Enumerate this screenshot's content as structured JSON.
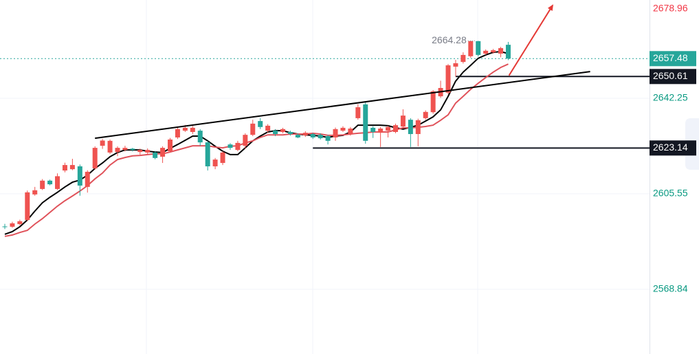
{
  "chart_data": {
    "type": "candlestick",
    "up_color": "#ef5350",
    "down_color": "#26a69a",
    "xlim": [
      -0.64,
      85.8
    ],
    "ylim": [
      2544.0,
      2680.0
    ],
    "yticks": [
      2642.25,
      2605.55,
      2568.84
    ],
    "grid": true,
    "open": [
      2593.0,
      2592.9,
      2593.9,
      2595.5,
      2605.3,
      2607.4,
      2610.6,
      2607.4,
      2614.5,
      2615.0,
      2616.1,
      2608.2,
      2615.3,
      2624.0,
      2621.4,
      2621.6,
      2622.4,
      2622.9,
      2621.6,
      2621.4,
      2621.4,
      2619.8,
      2621.9,
      2627.2,
      2629.8,
      2629.3,
      2629.8,
      2625.3,
      2616.1,
      2617.4,
      2624.5,
      2622.4,
      2624.0,
      2628.2,
      2633.5,
      2629.8,
      2629.8,
      2629.3,
      2629.3,
      2628.2,
      2628.0,
      2628.5,
      2628.2,
      2627.7,
      2627.2,
      2629.8,
      2628.5,
      2634.6,
      2639.9,
      2630.9,
      2629.0,
      2629.8,
      2629.3,
      2631.4,
      2634.0,
      2628.5,
      2634.6,
      2636.9,
      2643.0,
      2644.4,
      2654.4,
      2656.2,
      2658.4,
      2664.2,
      2659.4,
      2659.9,
      2659.4,
      2662.8
    ],
    "high": [
      2594.0,
      2594.8,
      2595.6,
      2606.8,
      2608.2,
      2611.2,
      2611.0,
      2613.4,
      2617.5,
      2619.0,
      2616.8,
      2614.6,
      2623.8,
      2626.6,
      2626.4,
      2623.8,
      2624.0,
      2623.2,
      2622.9,
      2623.0,
      2622.0,
      2623.8,
      2627.0,
      2631.0,
      2632.0,
      2631.6,
      2630.4,
      2625.8,
      2619.3,
      2621.9,
      2625.0,
      2625.9,
      2628.8,
      2634.0,
      2634.6,
      2632.3,
      2630.4,
      2630.9,
      2629.8,
      2628.8,
      2629.6,
      2629.0,
      2628.8,
      2628.2,
      2631.0,
      2631.5,
      2631.2,
      2640.0,
      2641.0,
      2631.5,
      2631.2,
      2631.7,
      2632.5,
      2638.0,
      2634.6,
      2634.4,
      2637.6,
      2645.4,
      2649.0,
      2655.4,
      2657.0,
      2659.9,
      2664.3,
      2664.3,
      2661.0,
      2661.2,
      2662.0,
      2663.9
    ],
    "low": [
      2592.0,
      2592.5,
      2593.5,
      2595.0,
      2604.8,
      2607.0,
      2608.8,
      2607.0,
      2613.8,
      2614.6,
      2604.8,
      2606.0,
      2614.8,
      2622.8,
      2620.8,
      2620.0,
      2621.8,
      2621.8,
      2620.6,
      2620.8,
      2618.8,
      2617.4,
      2621.4,
      2626.6,
      2629.3,
      2628.5,
      2624.0,
      2614.5,
      2615.0,
      2616.6,
      2622.4,
      2621.9,
      2622.9,
      2627.7,
      2630.4,
      2629.0,
      2627.7,
      2628.8,
      2627.9,
      2626.9,
      2627.4,
      2626.6,
      2626.4,
      2624.5,
      2625.9,
      2629.3,
      2627.9,
      2634.0,
      2624.8,
      2627.0,
      2623.5,
      2627.2,
      2628.8,
      2630.9,
      2623.5,
      2623.8,
      2634.0,
      2636.3,
      2642.4,
      2643.8,
      2650.6,
      2655.6,
      2657.8,
      2658.3,
      2658.9,
      2659.4,
      2658.0,
      2656.9
    ],
    "close": [
      2592.8,
      2594.2,
      2595.0,
      2606.1,
      2606.9,
      2610.6,
      2609.2,
      2612.3,
      2616.6,
      2616.6,
      2608.7,
      2614.0,
      2623.2,
      2626.0,
      2625.9,
      2623.2,
      2623.2,
      2622.4,
      2622.4,
      2622.4,
      2619.3,
      2623.2,
      2626.4,
      2630.4,
      2630.9,
      2630.9,
      2625.3,
      2616.1,
      2618.7,
      2621.4,
      2623.2,
      2625.1,
      2628.2,
      2632.5,
      2631.2,
      2631.7,
      2628.5,
      2630.4,
      2628.5,
      2627.2,
      2629.0,
      2627.2,
      2626.9,
      2625.9,
      2630.4,
      2630.9,
      2630.6,
      2638.8,
      2625.9,
      2629.3,
      2630.6,
      2631.2,
      2631.9,
      2635.6,
      2628.5,
      2633.8,
      2637.0,
      2644.9,
      2646.2,
      2654.9,
      2655.7,
      2658.9,
      2664.2,
      2658.9,
      2660.5,
      2660.7,
      2661.5,
      2657.5
    ],
    "moving_averages": [
      {
        "color": "#000000",
        "values": [
          2590.0,
          2591.0,
          2592.9,
          2595.5,
          2598.9,
          2602.1,
          2604.2,
          2606.1,
          2608.2,
          2610.0,
          2610.8,
          2612.7,
          2615.3,
          2617.4,
          2619.8,
          2621.4,
          2622.4,
          2622.4,
          2622.4,
          2621.9,
          2621.6,
          2621.4,
          2623.0,
          2624.5,
          2626.1,
          2627.7,
          2627.7,
          2625.9,
          2623.8,
          2621.9,
          2620.6,
          2620.6,
          2623.2,
          2625.9,
          2627.7,
          2629.3,
          2629.8,
          2629.8,
          2629.0,
          2628.5,
          2628.2,
          2628.0,
          2627.7,
          2627.2,
          2627.7,
          2628.0,
          2629.3,
          2631.9,
          2631.9,
          2631.9,
          2631.9,
          2631.7,
          2630.9,
          2630.4,
          2631.1,
          2631.9,
          2633.5,
          2635.1,
          2637.8,
          2643.0,
          2648.8,
          2652.3,
          2654.9,
          2657.6,
          2658.9,
          2659.9,
          2660.2,
          2659.4
        ]
      },
      {
        "color": "#e0525a",
        "values": [
          2589.2,
          2589.7,
          2590.7,
          2591.5,
          2593.9,
          2596.0,
          2598.4,
          2600.8,
          2602.9,
          2604.7,
          2606.6,
          2608.7,
          2611.3,
          2613.5,
          2616.6,
          2618.7,
          2619.5,
          2620.1,
          2620.3,
          2620.6,
          2620.9,
          2620.9,
          2621.6,
          2622.4,
          2623.2,
          2624.0,
          2624.0,
          2624.0,
          2623.5,
          2623.2,
          2623.8,
          2624.0,
          2625.1,
          2625.9,
          2627.2,
          2628.2,
          2628.2,
          2628.2,
          2628.5,
          2628.5,
          2628.5,
          2628.8,
          2628.5,
          2628.0,
          2628.0,
          2628.2,
          2628.5,
          2628.8,
          2629.0,
          2629.3,
          2629.3,
          2629.3,
          2630.1,
          2630.9,
          2630.9,
          2631.1,
          2631.4,
          2631.9,
          2633.8,
          2635.9,
          2640.4,
          2643.0,
          2645.7,
          2648.0,
          2650.2,
          2652.3,
          2654.1,
          2655.4
        ]
      }
    ],
    "trendlines": [
      {
        "color": "#000000",
        "x": [
          12,
          77.9
        ],
        "y": [
          2626.9,
          2652.5
        ]
      },
      {
        "color": "#e53935",
        "x": [
          67.1,
          72.9
        ],
        "y": [
          2651.0,
          2677.9
        ]
      }
    ],
    "horizontal_lines": [
      {
        "value": 2650.61,
        "start": 60
      },
      {
        "value": 2623.14,
        "start": 41
      }
    ],
    "current_price": 2657.48,
    "price_alert": 2678.96,
    "high_marker": {
      "value": 2664.28,
      "x": 63
    }
  }
}
